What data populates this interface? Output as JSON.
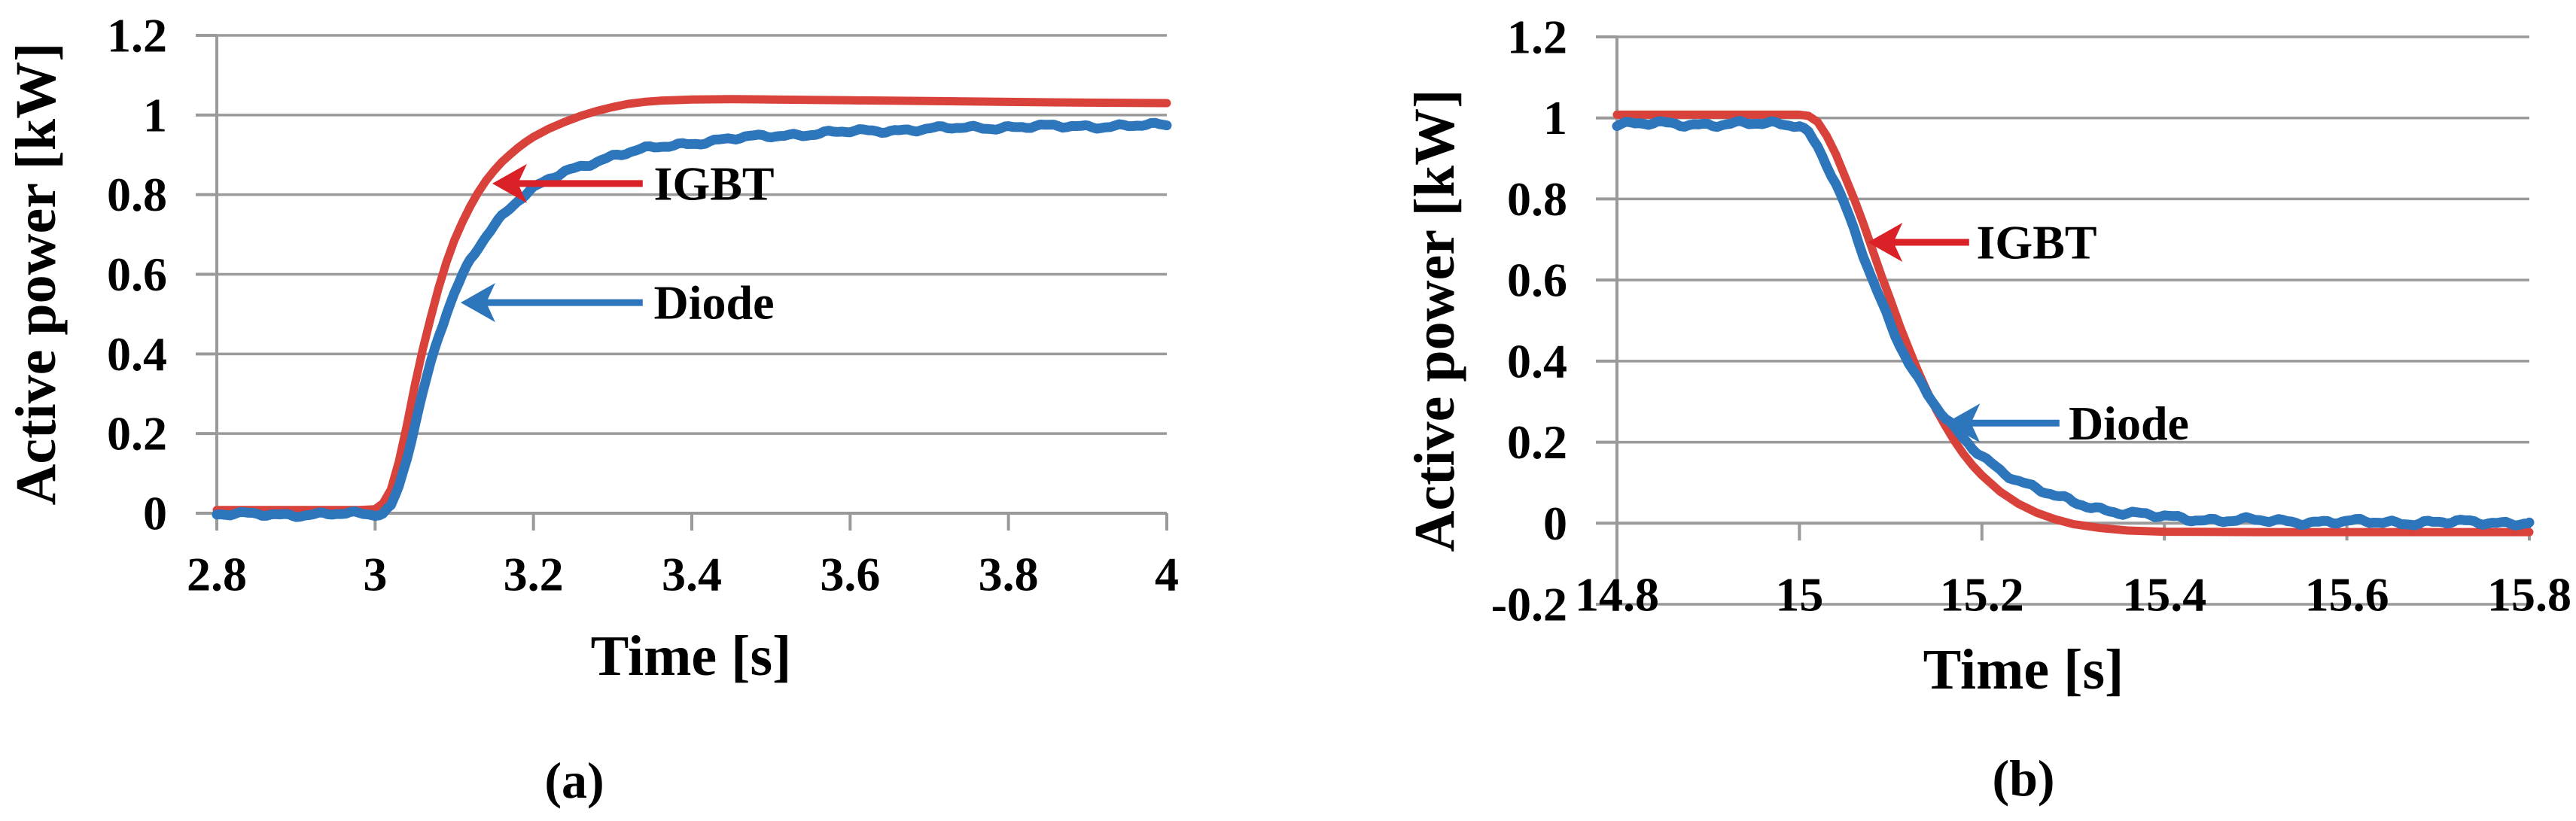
{
  "figure": {
    "background": "#ffffff",
    "colors": {
      "igbt": "#d9423b",
      "diode": "#2e76bb",
      "arrow_red": "#da2128",
      "arrow_blue": "#2e76bb",
      "grid": "#9a9a9a",
      "axis": "#9a9a9a",
      "text": "#000000"
    }
  },
  "chart_data": [
    {
      "id": "a",
      "type": "line",
      "caption": "(a)",
      "xlabel": "Time [s]",
      "ylabel": "Active power [kW]",
      "xlim": [
        2.8,
        4.0
      ],
      "ylim": [
        0,
        1.2
      ],
      "grid": "horizontal",
      "legend": "none (arrow annotations)",
      "xticks": [
        2.8,
        3,
        3.2,
        3.4,
        3.6,
        3.8,
        4
      ],
      "xtick_labels": [
        "2.8",
        "3",
        "3.2",
        "3.4",
        "3.6",
        "3.8",
        "4"
      ],
      "yticks": [
        0,
        0.2,
        0.4,
        0.6,
        0.8,
        1,
        1.2
      ],
      "ytick_labels": [
        "0",
        "0.2",
        "0.4",
        "0.6",
        "0.8",
        "1",
        "1.2"
      ],
      "series": [
        {
          "name": "IGBT",
          "color_key": "igbt",
          "stroke_width": 11,
          "noisy": false,
          "points": [
            [
              2.8,
              0.008
            ],
            [
              2.9,
              0.008
            ],
            [
              2.98,
              0.008
            ],
            [
              3.0,
              0.01
            ],
            [
              3.01,
              0.025
            ],
            [
              3.02,
              0.06
            ],
            [
              3.03,
              0.13
            ],
            [
              3.04,
              0.22
            ],
            [
              3.05,
              0.32
            ],
            [
              3.06,
              0.41
            ],
            [
              3.07,
              0.49
            ],
            [
              3.08,
              0.565
            ],
            [
              3.09,
              0.63
            ],
            [
              3.1,
              0.685
            ],
            [
              3.11,
              0.73
            ],
            [
              3.12,
              0.77
            ],
            [
              3.13,
              0.805
            ],
            [
              3.14,
              0.835
            ],
            [
              3.15,
              0.86
            ],
            [
              3.16,
              0.882
            ],
            [
              3.17,
              0.9
            ],
            [
              3.18,
              0.917
            ],
            [
              3.19,
              0.932
            ],
            [
              3.2,
              0.945
            ],
            [
              3.22,
              0.966
            ],
            [
              3.24,
              0.983
            ],
            [
              3.26,
              0.998
            ],
            [
              3.28,
              1.01
            ],
            [
              3.3,
              1.02
            ],
            [
              3.32,
              1.028
            ],
            [
              3.34,
              1.033
            ],
            [
              3.36,
              1.036
            ],
            [
              3.4,
              1.039
            ],
            [
              3.45,
              1.04
            ],
            [
              3.5,
              1.039
            ],
            [
              3.6,
              1.037
            ],
            [
              3.7,
              1.035
            ],
            [
              3.8,
              1.033
            ],
            [
              3.9,
              1.031
            ],
            [
              4.0,
              1.03
            ]
          ]
        },
        {
          "name": "Diode",
          "color_key": "diode",
          "stroke_width": 13,
          "noisy": true,
          "noise_amp": 4,
          "points": [
            [
              2.8,
              -0.003
            ],
            [
              2.9,
              -0.003
            ],
            [
              3.0,
              -0.002
            ],
            [
              3.01,
              0
            ],
            [
              3.02,
              0.02
            ],
            [
              3.03,
              0.07
            ],
            [
              3.04,
              0.14
            ],
            [
              3.05,
              0.22
            ],
            [
              3.06,
              0.3
            ],
            [
              3.07,
              0.375
            ],
            [
              3.08,
              0.44
            ],
            [
              3.09,
              0.5
            ],
            [
              3.1,
              0.55
            ],
            [
              3.11,
              0.595
            ],
            [
              3.12,
              0.635
            ],
            [
              3.13,
              0.668
            ],
            [
              3.14,
              0.698
            ],
            [
              3.15,
              0.724
            ],
            [
              3.16,
              0.747
            ],
            [
              3.17,
              0.767
            ],
            [
              3.18,
              0.785
            ],
            [
              3.19,
              0.8
            ],
            [
              3.2,
              0.814
            ],
            [
              3.22,
              0.838
            ],
            [
              3.24,
              0.857
            ],
            [
              3.26,
              0.872
            ],
            [
              3.28,
              0.885
            ],
            [
              3.3,
              0.897
            ],
            [
              3.33,
              0.91
            ],
            [
              3.36,
              0.92
            ],
            [
              3.4,
              0.93
            ],
            [
              3.45,
              0.94
            ],
            [
              3.5,
              0.948
            ],
            [
              3.55,
              0.953
            ],
            [
              3.6,
              0.958
            ],
            [
              3.65,
              0.962
            ],
            [
              3.7,
              0.965
            ],
            [
              3.75,
              0.968
            ],
            [
              3.8,
              0.97
            ],
            [
              3.9,
              0.972
            ],
            [
              4.0,
              0.974
            ]
          ]
        }
      ],
      "annotations": [
        {
          "label": "IGBT",
          "color_key": "arrow_red",
          "arrow_from": [
            3.338,
            0.828
          ],
          "arrow_to": [
            3.148,
            0.828
          ],
          "text_at": [
            3.352,
            0.828
          ]
        },
        {
          "label": "Diode",
          "color_key": "arrow_blue",
          "arrow_from": [
            3.338,
            0.529
          ],
          "arrow_to": [
            3.108,
            0.529
          ],
          "text_at": [
            3.352,
            0.529
          ]
        }
      ]
    },
    {
      "id": "b",
      "type": "line",
      "caption": "(b)",
      "xlabel": "Time [s]",
      "ylabel": "Active power [kW]",
      "xlim": [
        14.8,
        15.8
      ],
      "ylim": [
        -0.2,
        1.2
      ],
      "grid": "horizontal",
      "legend": "none (arrow annotations)",
      "xticks": [
        14.8,
        15,
        15.2,
        15.4,
        15.6,
        15.8
      ],
      "xtick_labels": [
        "14.8",
        "15",
        "15.2",
        "15.4",
        "15.6",
        "15.8"
      ],
      "yticks": [
        -0.2,
        0,
        0.2,
        0.4,
        0.6,
        0.8,
        1,
        1.2
      ],
      "ytick_labels": [
        "-0.2",
        "0",
        "0.2",
        "0.4",
        "0.6",
        "0.8",
        "1",
        "1.2"
      ],
      "series": [
        {
          "name": "IGBT",
          "color_key": "igbt",
          "stroke_width": 11,
          "noisy": false,
          "points": [
            [
              14.8,
              1.008
            ],
            [
              14.9,
              1.008
            ],
            [
              15.0,
              1.008
            ],
            [
              15.01,
              1.005
            ],
            [
              15.02,
              0.99
            ],
            [
              15.03,
              0.955
            ],
            [
              15.04,
              0.91
            ],
            [
              15.05,
              0.855
            ],
            [
              15.06,
              0.8
            ],
            [
              15.07,
              0.74
            ],
            [
              15.08,
              0.675
            ],
            [
              15.09,
              0.61
            ],
            [
              15.1,
              0.55
            ],
            [
              15.11,
              0.487
            ],
            [
              15.12,
              0.43
            ],
            [
              15.13,
              0.375
            ],
            [
              15.14,
              0.325
            ],
            [
              15.15,
              0.28
            ],
            [
              15.16,
              0.24
            ],
            [
              15.17,
              0.203
            ],
            [
              15.18,
              0.17
            ],
            [
              15.19,
              0.142
            ],
            [
              15.2,
              0.118
            ],
            [
              15.22,
              0.078
            ],
            [
              15.24,
              0.048
            ],
            [
              15.26,
              0.026
            ],
            [
              15.28,
              0.01
            ],
            [
              15.3,
              -0.002
            ],
            [
              15.33,
              -0.012
            ],
            [
              15.36,
              -0.018
            ],
            [
              15.4,
              -0.021
            ],
            [
              15.5,
              -0.022
            ],
            [
              15.6,
              -0.022
            ],
            [
              15.7,
              -0.022
            ],
            [
              15.8,
              -0.022
            ]
          ]
        },
        {
          "name": "Diode",
          "color_key": "diode",
          "stroke_width": 13,
          "noisy": true,
          "noise_amp": 5,
          "points": [
            [
              14.8,
              0.985
            ],
            [
              14.9,
              0.985
            ],
            [
              15.0,
              0.985
            ],
            [
              15.01,
              0.965
            ],
            [
              15.02,
              0.93
            ],
            [
              15.03,
              0.885
            ],
            [
              15.04,
              0.835
            ],
            [
              15.05,
              0.78
            ],
            [
              15.06,
              0.72
            ],
            [
              15.07,
              0.66
            ],
            [
              15.08,
              0.6
            ],
            [
              15.09,
              0.545
            ],
            [
              15.1,
              0.492
            ],
            [
              15.11,
              0.443
            ],
            [
              15.12,
              0.398
            ],
            [
              15.13,
              0.357
            ],
            [
              15.14,
              0.32
            ],
            [
              15.15,
              0.287
            ],
            [
              15.16,
              0.257
            ],
            [
              15.17,
              0.23
            ],
            [
              15.18,
              0.206
            ],
            [
              15.19,
              0.185
            ],
            [
              15.2,
              0.166
            ],
            [
              15.22,
              0.133
            ],
            [
              15.24,
              0.106
            ],
            [
              15.26,
              0.084
            ],
            [
              15.28,
              0.066
            ],
            [
              15.3,
              0.052
            ],
            [
              15.33,
              0.036
            ],
            [
              15.36,
              0.025
            ],
            [
              15.4,
              0.015
            ],
            [
              15.45,
              0.009
            ],
            [
              15.5,
              0.006
            ],
            [
              15.6,
              0.003
            ],
            [
              15.7,
              0.002
            ],
            [
              15.8,
              0.002
            ]
          ]
        }
      ],
      "annotations": [
        {
          "label": "IGBT",
          "color_key": "arrow_red",
          "arrow_from": [
            15.186,
            0.693
          ],
          "arrow_to": [
            15.075,
            0.693
          ],
          "text_at": [
            15.194,
            0.693
          ]
        },
        {
          "label": "Diode",
          "color_key": "arrow_blue",
          "arrow_from": [
            15.285,
            0.247
          ],
          "arrow_to": [
            15.16,
            0.247
          ],
          "text_at": [
            15.295,
            0.247
          ]
        }
      ]
    }
  ]
}
